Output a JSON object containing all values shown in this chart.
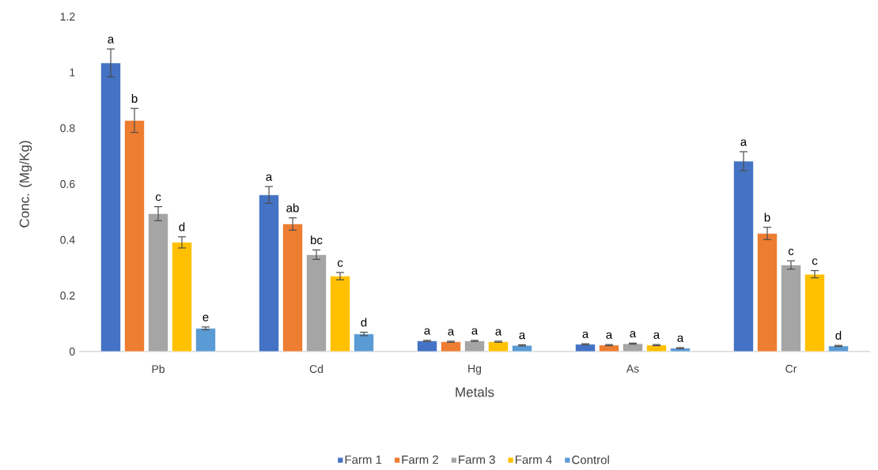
{
  "chart_data": {
    "type": "bar",
    "xlabel": "Metals",
    "ylabel": "Conc. (Mg/Kg)",
    "categories": [
      "Pb",
      "Cd",
      "Hg",
      "As",
      "Cr"
    ],
    "series": [
      {
        "name": "Farm 1",
        "color": "#4472c4",
        "values": [
          1.034,
          0.561,
          0.038,
          0.026,
          0.682
        ],
        "errors": [
          0.05,
          0.03,
          0.002,
          0.002,
          0.034
        ]
      },
      {
        "name": "Farm 2",
        "color": "#ed7d31",
        "values": [
          0.828,
          0.457,
          0.035,
          0.023,
          0.423
        ],
        "errors": [
          0.043,
          0.022,
          0.002,
          0.002,
          0.022
        ]
      },
      {
        "name": "Farm 3",
        "color": "#a5a5a5",
        "values": [
          0.494,
          0.347,
          0.038,
          0.028,
          0.31
        ],
        "errors": [
          0.025,
          0.017,
          0.002,
          0.002,
          0.015
        ]
      },
      {
        "name": "Farm 4",
        "color": "#ffc000",
        "values": [
          0.391,
          0.27,
          0.035,
          0.023,
          0.277
        ],
        "errors": [
          0.02,
          0.013,
          0.002,
          0.002,
          0.013
        ]
      },
      {
        "name": "Control",
        "color": "#5b9bd5",
        "values": [
          0.083,
          0.063,
          0.022,
          0.012,
          0.02
        ],
        "errors": [
          0.005,
          0.006,
          0.002,
          0.002,
          0.002
        ]
      }
    ],
    "ylim": [
      0,
      1.2
    ],
    "yticks": [
      0,
      0.2,
      0.4,
      0.6,
      0.8,
      1,
      1.2
    ],
    "legend": "bottom",
    "annotations": [
      "a",
      "b",
      "c",
      "d",
      "e",
      "a",
      "ab",
      "bc",
      "c",
      "d",
      "a",
      "a",
      "a",
      "a",
      "a",
      "a",
      "a",
      "a",
      "a",
      "a",
      "a",
      "b",
      "c",
      "c",
      "d"
    ]
  }
}
